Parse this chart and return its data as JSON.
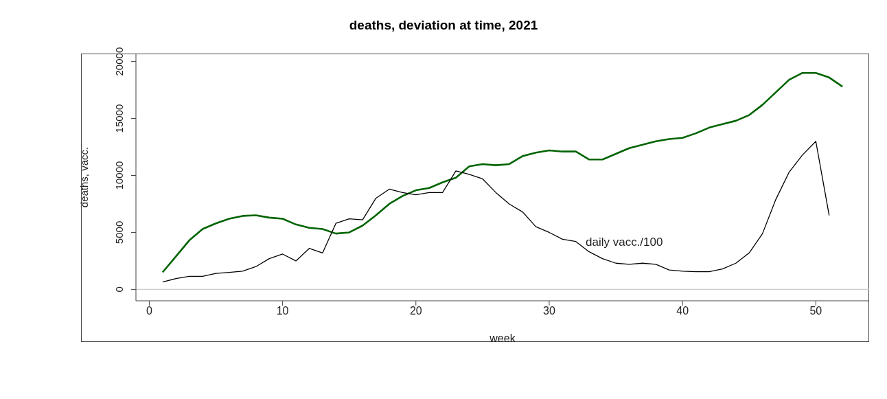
{
  "chart_data": {
    "type": "line",
    "title": "deaths, deviation at time, 2021",
    "xlabel": "week",
    "ylabel": "deaths, vacc.",
    "x": [
      1,
      2,
      3,
      4,
      5,
      6,
      7,
      8,
      9,
      10,
      11,
      12,
      13,
      14,
      15,
      16,
      17,
      18,
      19,
      20,
      21,
      22,
      23,
      24,
      25,
      26,
      27,
      28,
      29,
      30,
      31,
      32,
      33,
      34,
      35,
      36,
      37,
      38,
      39,
      40,
      41,
      42,
      43,
      44,
      45,
      46,
      47,
      48,
      49,
      50,
      51,
      52
    ],
    "series": [
      {
        "color": "#006400",
        "values": [
          1500,
          2900,
          4300,
          5300,
          5800,
          6200,
          6450,
          6500,
          6300,
          6200,
          5700,
          5400,
          5300,
          4900,
          5000,
          5600,
          6500,
          7500,
          8200,
          8700,
          8900,
          9400,
          9800,
          10800,
          11000,
          10900,
          11000,
          11700,
          12000,
          12200,
          12100,
          12100,
          11400,
          11400,
          11900,
          12400,
          12700,
          13000,
          13200,
          13300,
          13700,
          14200,
          14500,
          14800,
          15300,
          16200,
          17300,
          18400,
          19000,
          19000,
          18600,
          17800
        ]
      },
      {
        "color": "#000000",
        "values": [
          650,
          950,
          1150,
          1150,
          1400,
          1500,
          1600,
          2000,
          2700,
          3100,
          2500,
          3600,
          3200,
          5800,
          6200,
          6100,
          8000,
          8800,
          8500,
          8300,
          8500,
          8500,
          10400,
          10100,
          9700,
          8500,
          7500,
          6800,
          5500,
          5000,
          4400,
          4200,
          3300,
          2700,
          2300,
          2200,
          2300,
          2200,
          1700,
          1600,
          1550,
          1550,
          1800,
          2300,
          3200,
          4900,
          7900,
          10300,
          11800,
          13000,
          6500,
          null
        ]
      }
    ],
    "annotations": [
      "daily vacc./100"
    ],
    "ref_lines": [
      {
        "axis": "y",
        "value": 0,
        "color": "#cccccc"
      }
    ],
    "xlim": [
      -1,
      54
    ],
    "xticks": [
      0,
      10,
      20,
      30,
      40,
      50
    ],
    "ylim": [
      -1000,
      20700
    ],
    "yticks": [
      0,
      5000,
      10000,
      15000,
      20000
    ],
    "marker": "none",
    "line_style": "solid"
  }
}
